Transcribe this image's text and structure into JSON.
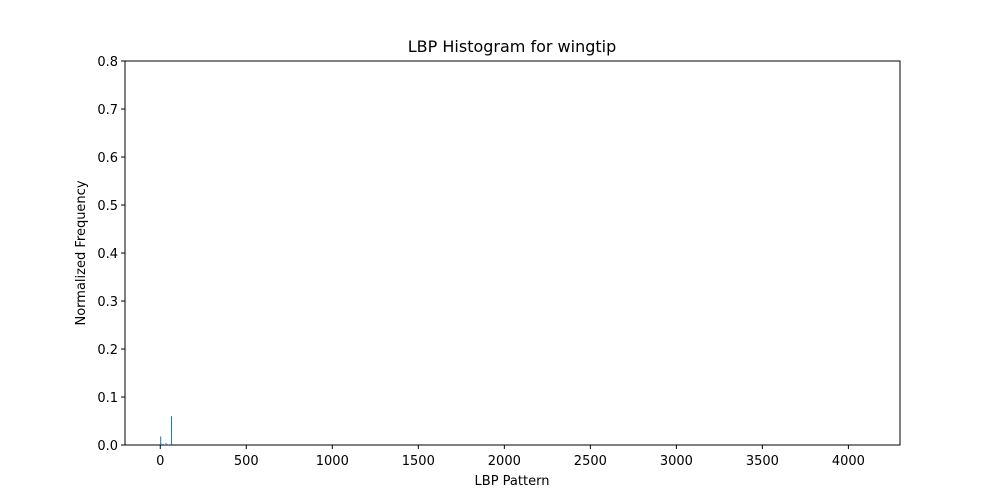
{
  "chart_data": {
    "type": "bar",
    "title": "LBP Histogram for wingtip",
    "xlabel": "LBP Pattern",
    "ylabel": "Normalized Frequency",
    "xlim": [
      -205,
      4300
    ],
    "ylim": [
      0,
      0.8
    ],
    "xticks": [
      0,
      500,
      1000,
      1500,
      2000,
      2500,
      3000,
      3500,
      4000
    ],
    "yticks": [
      0.0,
      0.1,
      0.2,
      0.3,
      0.4,
      0.5,
      0.6,
      0.7,
      0.8
    ],
    "xtick_labels": [
      "0",
      "500",
      "1000",
      "1500",
      "2000",
      "2500",
      "3000",
      "3500",
      "4000"
    ],
    "ytick_labels": [
      "0.0",
      "0.1",
      "0.2",
      "0.3",
      "0.4",
      "0.5",
      "0.6",
      "0.7",
      "0.8"
    ],
    "x": [
      0,
      1,
      3,
      7,
      8,
      15,
      16,
      24,
      28,
      30,
      31,
      32,
      48,
      56,
      60,
      62,
      63
    ],
    "values": [
      0.018,
      0.003,
      0.002,
      0.002,
      0.001,
      0.002,
      0.002,
      0.001,
      0.001,
      0.002,
      0.004,
      0.002,
      0.001,
      0.002,
      0.001,
      0.003,
      0.06
    ],
    "bar_color": "#1f77b4",
    "grid": false,
    "legend": "none"
  }
}
